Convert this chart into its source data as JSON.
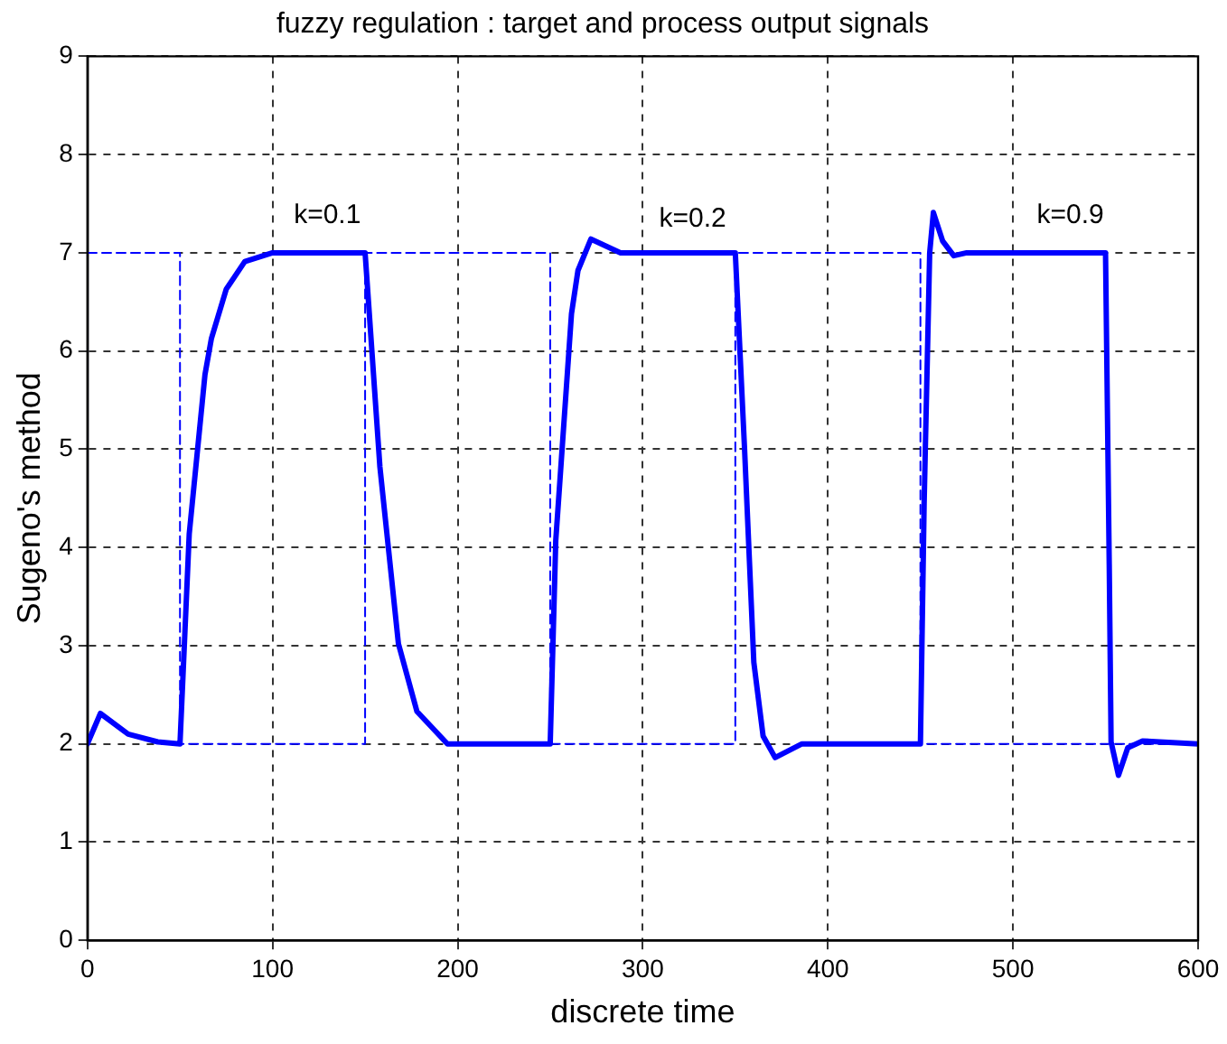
{
  "chart_data": {
    "type": "line",
    "title": "fuzzy regulation : target and process output signals",
    "xlabel": "discrete time",
    "ylabel": "Sugeno's method",
    "xlim": [
      0,
      600
    ],
    "xticks": [
      0,
      100,
      200,
      300,
      400,
      500,
      600
    ],
    "ylim": [
      0,
      9
    ],
    "yticks": [
      0,
      1,
      2,
      3,
      4,
      5,
      6,
      7,
      8,
      9
    ],
    "grid": true,
    "legend": false,
    "marker": "none",
    "series": [
      {
        "type": "step",
        "color": "#0000ff",
        "line_style": "dashed",
        "x": [
          0,
          50,
          150,
          250,
          350,
          450,
          550,
          600
        ],
        "values": [
          2,
          7,
          2,
          7,
          2,
          7,
          2,
          2
        ]
      },
      {
        "type": "line",
        "color": "#0000ff",
        "line_style": "solid",
        "x": [
          0,
          7,
          22,
          38,
          50,
          55,
          63.5,
          67,
          75,
          85,
          100,
          150,
          158,
          168,
          178,
          194.5,
          250,
          253,
          261.5,
          265,
          272,
          288,
          350,
          355,
          360,
          365,
          371.5,
          386,
          450,
          452,
          455,
          457,
          462,
          468,
          475,
          550,
          552,
          553,
          557,
          562,
          570,
          600
        ],
        "values": [
          2,
          2.31,
          2.1,
          2.02,
          2,
          4.14,
          5.76,
          6.13,
          6.63,
          6.91,
          7,
          7,
          4.82,
          3.02,
          2.33,
          2,
          2,
          4.07,
          6.38,
          6.82,
          7.14,
          7,
          7,
          5,
          2.83,
          2.08,
          1.86,
          2,
          2,
          4.45,
          7,
          7.41,
          7.12,
          6.97,
          7,
          7,
          3.83,
          2.02,
          1.68,
          1.96,
          2.03,
          2
        ]
      }
    ],
    "annotations": [
      "k=0.1",
      "k=0.2",
      "k=0.9"
    ]
  }
}
